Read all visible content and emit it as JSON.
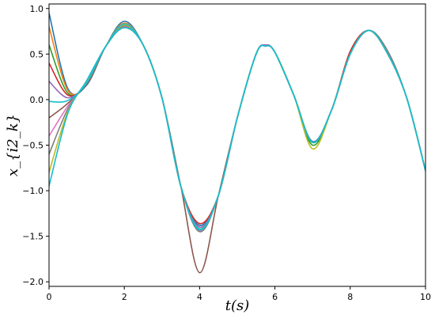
{
  "chart_data": {
    "type": "line",
    "title": "",
    "xlabel": "t(s)",
    "ylabel": "x_{i2_k}",
    "xlim": [
      0,
      10
    ],
    "ylim": [
      -2.05,
      1.05
    ],
    "xticks": [
      0,
      2,
      4,
      6,
      8,
      10
    ],
    "xtick_labels": [
      "0",
      "2",
      "4",
      "6",
      "8",
      "10"
    ],
    "yticks": [
      1.0,
      0.5,
      0.0,
      -0.5,
      -1.0,
      -1.5,
      -2.0
    ],
    "ytick_labels": [
      "1.0",
      "0.5",
      "0.0",
      "−0.5",
      "−1.0",
      "−1.5",
      "−2.0"
    ],
    "grid": false,
    "legend": "none",
    "colors": [
      "#1f77b4",
      "#ff7f0e",
      "#2ca02c",
      "#d62728",
      "#9467bd",
      "#8c564b",
      "#e377c2",
      "#7f7f7f",
      "#bcbd22",
      "#17becf"
    ],
    "reference": {
      "x": [
        0,
        0.5,
        1,
        1.5,
        2,
        2.5,
        3,
        3.5,
        4,
        4.5,
        5,
        5.5,
        5.75,
        6,
        6.5,
        7,
        7.5,
        8,
        8.5,
        9,
        9.5,
        10
      ],
      "y": [
        -0.02,
        -0.01,
        0.18,
        0.58,
        0.79,
        0.6,
        0.02,
        -0.95,
        -1.42,
        -1.05,
        -0.2,
        0.5,
        0.59,
        0.52,
        0.05,
        -0.47,
        -0.12,
        0.5,
        0.76,
        0.5,
        0.02,
        -0.78
      ]
    },
    "series": [
      {
        "y0": 0.95,
        "x": [
          0,
          0.5,
          1,
          1.5,
          2,
          2.5,
          3,
          3.5,
          4,
          4.5,
          5,
          5.5,
          5.75,
          6,
          6.5,
          7,
          7.5,
          8,
          8.5,
          9,
          9.5,
          10
        ],
        "y": [
          0.95,
          0.12,
          0.16,
          0.58,
          0.86,
          0.6,
          0.02,
          -0.95,
          -1.38,
          -1.05,
          -0.2,
          0.5,
          0.59,
          0.52,
          0.05,
          -0.46,
          -0.12,
          0.5,
          0.76,
          0.5,
          0.02,
          -0.78
        ]
      },
      {
        "y0": 0.8,
        "x": [
          0,
          0.5,
          1,
          1.5,
          2,
          2.5,
          3,
          3.5,
          4,
          4.5,
          5,
          5.5,
          5.75,
          6,
          6.5,
          7,
          7.5,
          8,
          8.5,
          9,
          9.5,
          10
        ],
        "y": [
          0.8,
          0.1,
          0.17,
          0.58,
          0.84,
          0.6,
          0.02,
          -0.95,
          -1.4,
          -1.05,
          -0.2,
          0.5,
          0.59,
          0.52,
          0.05,
          -0.47,
          -0.12,
          0.5,
          0.76,
          0.5,
          0.02,
          -0.78
        ]
      },
      {
        "y0": 0.6,
        "x": [
          0,
          0.5,
          1,
          1.5,
          2,
          2.5,
          3,
          3.5,
          4,
          4.5,
          5,
          5.5,
          5.75,
          6,
          6.5,
          7,
          7.5,
          8,
          8.5,
          9,
          9.5,
          10
        ],
        "y": [
          0.6,
          0.07,
          0.17,
          0.58,
          0.82,
          0.6,
          0.02,
          -0.95,
          -1.43,
          -1.05,
          -0.2,
          0.5,
          0.59,
          0.52,
          0.05,
          -0.5,
          -0.12,
          0.5,
          0.76,
          0.5,
          0.02,
          -0.78
        ]
      },
      {
        "y0": 0.4,
        "x": [
          0,
          0.5,
          1,
          1.5,
          2,
          2.5,
          3,
          3.5,
          4,
          4.5,
          5,
          5.5,
          5.75,
          6,
          6.5,
          7,
          7.5,
          8,
          8.5,
          9,
          9.5,
          10
        ],
        "y": [
          0.4,
          0.05,
          0.17,
          0.58,
          0.81,
          0.6,
          0.02,
          -0.95,
          -1.36,
          -1.05,
          -0.2,
          0.5,
          0.59,
          0.52,
          0.05,
          -0.47,
          -0.12,
          0.53,
          0.76,
          0.5,
          0.02,
          -0.78
        ]
      },
      {
        "y0": 0.2,
        "x": [
          0,
          0.5,
          1,
          1.5,
          2,
          2.5,
          3,
          3.5,
          4,
          4.5,
          5,
          5.5,
          5.75,
          6,
          6.5,
          7,
          7.5,
          8,
          8.5,
          9,
          9.5,
          10
        ],
        "y": [
          0.2,
          0.02,
          0.18,
          0.58,
          0.8,
          0.6,
          0.02,
          -0.95,
          -1.4,
          -1.05,
          -0.2,
          0.5,
          0.6,
          0.52,
          0.05,
          -0.47,
          -0.12,
          0.5,
          0.76,
          0.5,
          0.02,
          -0.78
        ]
      },
      {
        "y0": -0.2,
        "x": [
          0,
          0.5,
          1,
          1.5,
          2,
          2.5,
          3,
          3.5,
          4,
          4.5,
          5,
          5.5,
          5.75,
          6,
          6.5,
          7,
          7.5,
          8,
          8.5,
          9,
          9.5,
          10
        ],
        "y": [
          -0.2,
          -0.04,
          0.18,
          0.58,
          0.79,
          0.6,
          0.02,
          -0.95,
          -1.9,
          -1.05,
          -0.2,
          0.5,
          0.59,
          0.52,
          0.05,
          -0.47,
          -0.12,
          0.5,
          0.76,
          0.5,
          0.02,
          -0.78
        ]
      },
      {
        "y0": -0.4,
        "x": [
          0,
          0.5,
          1,
          1.5,
          2,
          2.5,
          3,
          3.5,
          4,
          4.5,
          5,
          5.5,
          5.75,
          6,
          6.5,
          7,
          7.5,
          8,
          8.5,
          9,
          9.5,
          10
        ],
        "y": [
          -0.4,
          -0.07,
          0.19,
          0.58,
          0.8,
          0.6,
          0.02,
          -0.95,
          -1.44,
          -1.05,
          -0.2,
          0.5,
          0.59,
          0.52,
          0.05,
          -0.47,
          -0.12,
          0.5,
          0.76,
          0.5,
          0.02,
          -0.78
        ]
      },
      {
        "y0": -0.6,
        "x": [
          0,
          0.5,
          1,
          1.5,
          2,
          2.5,
          3,
          3.5,
          4,
          4.5,
          5,
          5.5,
          5.75,
          6,
          6.5,
          7,
          7.5,
          8,
          8.5,
          9,
          9.5,
          10
        ],
        "y": [
          -0.6,
          -0.1,
          0.2,
          0.58,
          0.81,
          0.6,
          0.02,
          -0.95,
          -1.45,
          -1.05,
          -0.2,
          0.5,
          0.59,
          0.52,
          0.05,
          -0.47,
          -0.12,
          0.5,
          0.76,
          0.53,
          0.02,
          -0.78
        ]
      },
      {
        "y0": -0.8,
        "x": [
          0,
          0.5,
          1,
          1.5,
          2,
          2.5,
          3,
          3.5,
          4,
          4.5,
          5,
          5.5,
          5.75,
          6,
          6.5,
          7,
          7.5,
          8,
          8.5,
          9,
          9.5,
          10
        ],
        "y": [
          -0.8,
          -0.13,
          0.2,
          0.58,
          0.82,
          0.6,
          0.02,
          -0.95,
          -1.42,
          -1.05,
          -0.2,
          0.5,
          0.59,
          0.52,
          0.05,
          -0.54,
          -0.12,
          0.5,
          0.76,
          0.5,
          0.02,
          -0.78
        ]
      },
      {
        "y0": -0.95,
        "x": [
          0,
          0.5,
          1,
          1.5,
          2,
          2.5,
          3,
          3.5,
          4,
          4.5,
          5,
          5.5,
          5.75,
          6,
          6.5,
          7,
          7.5,
          8,
          8.5,
          9,
          9.5,
          10
        ],
        "y": [
          -0.95,
          -0.15,
          0.21,
          0.58,
          0.83,
          0.6,
          0.02,
          -0.95,
          -1.43,
          -1.05,
          -0.2,
          0.5,
          0.59,
          0.52,
          0.05,
          -0.47,
          -0.12,
          0.5,
          0.76,
          0.5,
          0.02,
          -0.78
        ]
      }
    ]
  }
}
